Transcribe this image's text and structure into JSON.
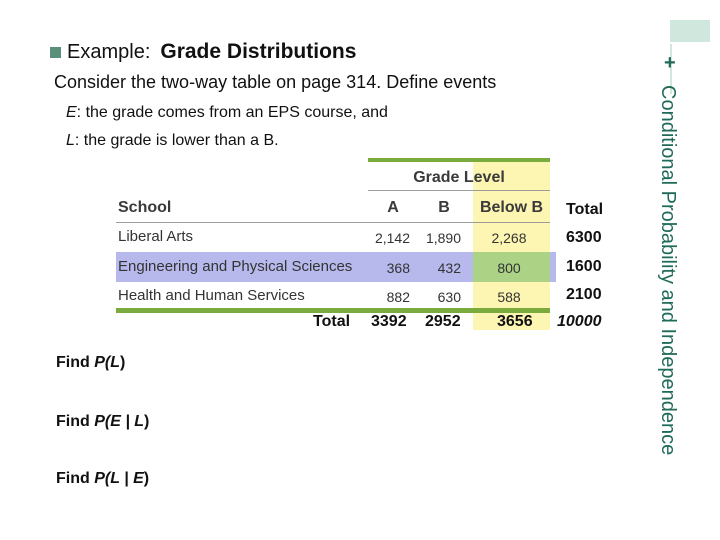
{
  "slide": {
    "bullet_label": "Example:",
    "title": "Grade Distributions",
    "intro": "Consider the two-way table on page 314.  Define events",
    "event_e": {
      "var": "E",
      "text": ": the grade comes from an EPS course, and"
    },
    "event_l": {
      "var": "L",
      "text": ": the grade is lower than a B."
    },
    "side_title": "Conditional Probability and Independence",
    "plus": "+"
  },
  "table": {
    "grade_level": "Grade Level",
    "school_header": "School",
    "columns": [
      "A",
      "B",
      "Below B"
    ],
    "total_header": "Total",
    "rows": [
      {
        "school": "Liberal Arts",
        "a": "2,142",
        "b": "1,890",
        "below_b": "2,268",
        "total": "6300"
      },
      {
        "school": "Engineering and Physical Sciences",
        "a": "368",
        "b": "432",
        "below_b": "800",
        "total": "1600"
      },
      {
        "school": "Health and Human Services",
        "a": "882",
        "b": "630",
        "below_b": "588",
        "total": "2100"
      }
    ],
    "totals": {
      "label": "Total",
      "a": "3392",
      "b": "2952",
      "below_b": "3656",
      "grand": "10000"
    }
  },
  "questions": [
    {
      "prefix": "Find ",
      "expr_open": "P(",
      "expr": "L",
      "expr_close": ")"
    },
    {
      "prefix": "Find ",
      "expr_open": "P(",
      "expr": "E | L",
      "expr_close": ")"
    },
    {
      "prefix": "Find ",
      "expr_open": "P(",
      "expr": "L | E",
      "expr_close": ")"
    }
  ],
  "colors": {
    "accent": "#1f6a58",
    "highlight_yellow": "#fdf6b2",
    "highlight_purple": "#b7b9ec",
    "highlight_overlap": "#acd385",
    "rule_green": "#7bab3e"
  }
}
